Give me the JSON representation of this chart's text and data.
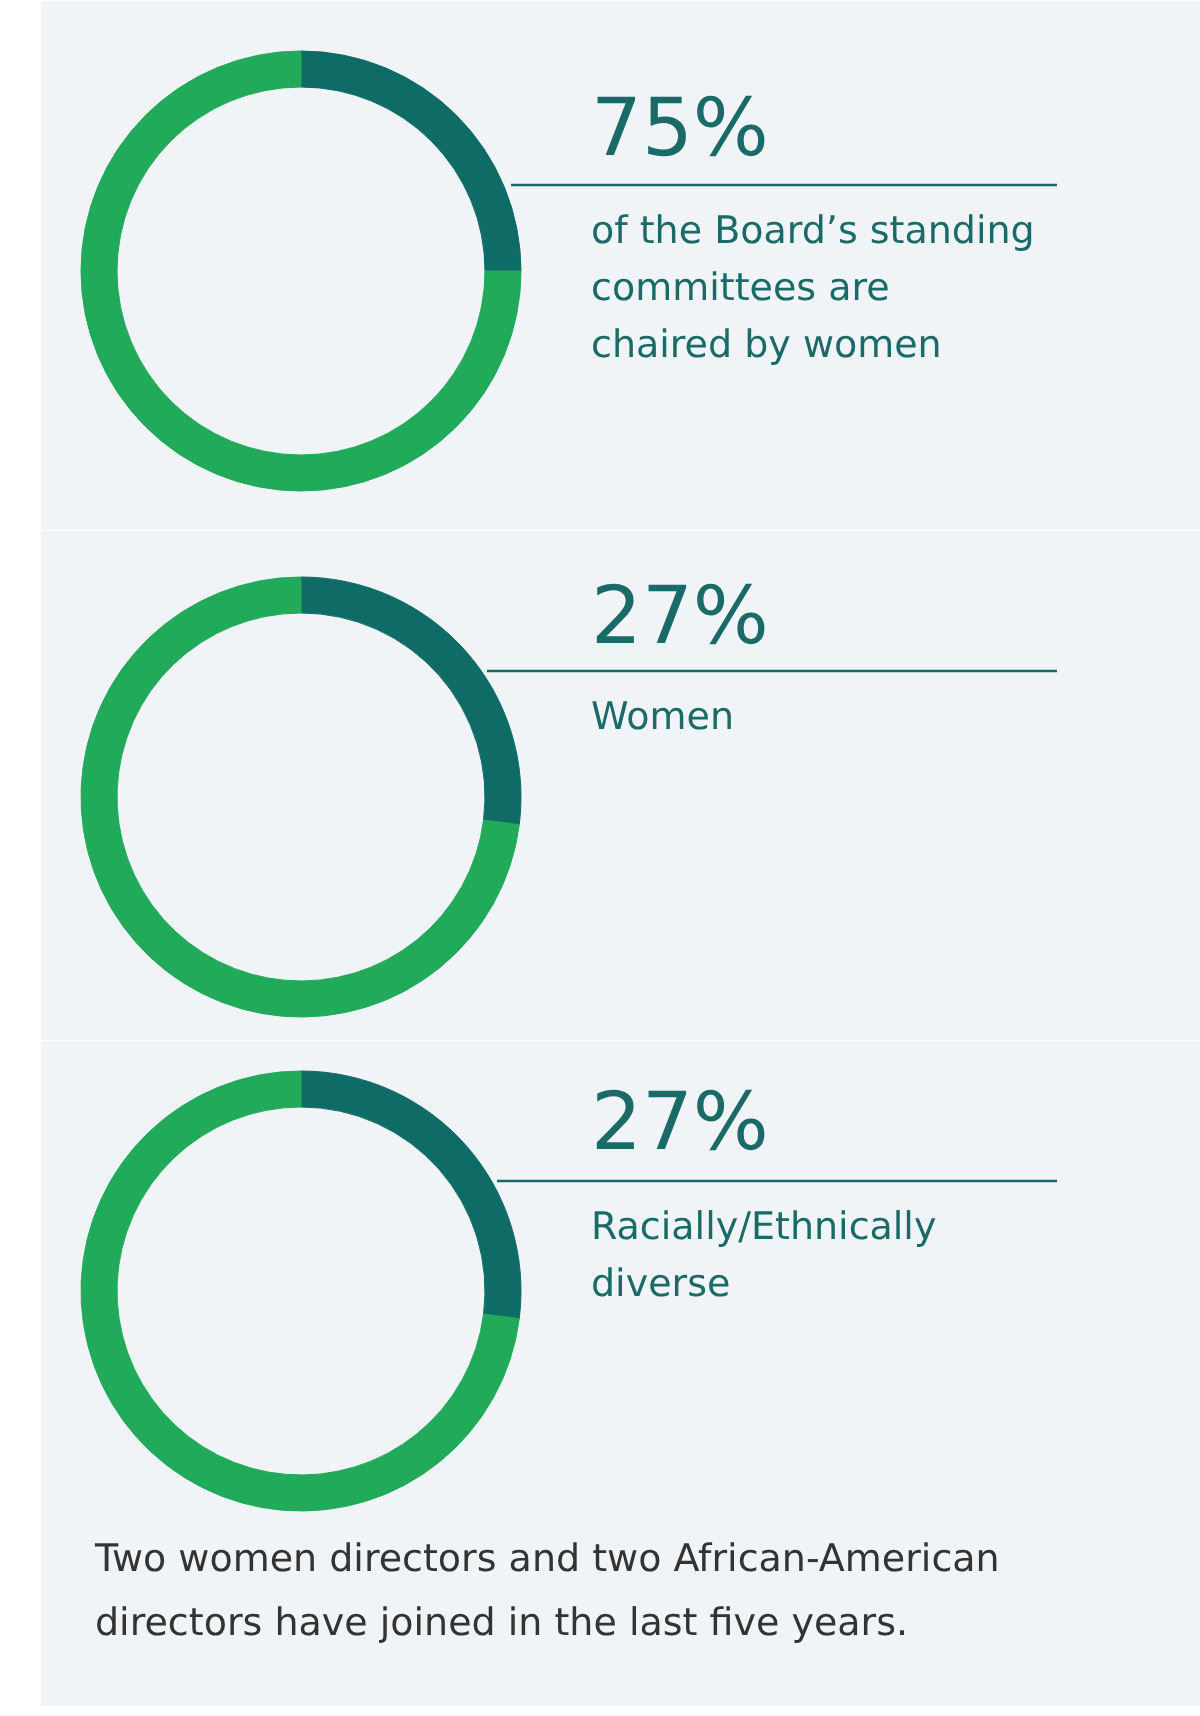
{
  "chart_data": [
    {
      "type": "donut",
      "title": "75%",
      "subtitle": "of the Board’s standing\ncommittees are\nchaired by women",
      "categories": [
        null,
        null
      ],
      "values": [
        25,
        75
      ],
      "colors": [
        "#0e6b66",
        "#20aa5a"
      ]
    },
    {
      "type": "donut",
      "title": "27%",
      "subtitle": "Women",
      "categories": [
        null,
        null
      ],
      "values": [
        27,
        73
      ],
      "colors": [
        "#0e6b66",
        "#20aa5a"
      ]
    },
    {
      "type": "donut",
      "title": "27%",
      "subtitle": "Racially/Ethnically\ndiverse",
      "categories": [
        null,
        null
      ],
      "values": [
        27,
        73
      ],
      "colors": [
        "#0e6b66",
        "#20aa5a"
      ],
      "annotations": [
        "Two women directors and two African-American\ndirectors have joined in the last five years."
      ]
    }
  ]
}
